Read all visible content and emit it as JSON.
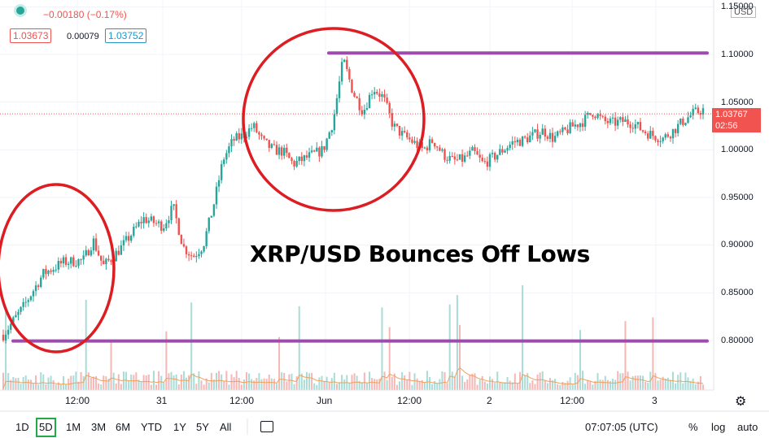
{
  "header": {
    "change_text": "−0.00180 (−0.17%)",
    "bid": "1.03673",
    "spread": "0.00079",
    "ask": "1.03752",
    "currency": "USD"
  },
  "last_price_tag": {
    "price": "1.03767",
    "countdown": "02:56"
  },
  "annotation": "XRP/USD Bounces Off Lows",
  "timeframes": [
    {
      "label": "1D",
      "active": false
    },
    {
      "label": "5D",
      "active": true
    },
    {
      "label": "1M",
      "active": false
    },
    {
      "label": "3M",
      "active": false
    },
    {
      "label": "6M",
      "active": false
    },
    {
      "label": "YTD",
      "active": false
    },
    {
      "label": "1Y",
      "active": false
    },
    {
      "label": "5Y",
      "active": false
    },
    {
      "label": "All",
      "active": false
    }
  ],
  "footer": {
    "time": "07:07:05 (UTC)",
    "percent": "%",
    "log": "log",
    "auto": "auto"
  },
  "colors": {
    "up": "#26a69a",
    "down": "#ef5350",
    "level": "#9c4dab",
    "circle": "#dd1d22",
    "volume_ma": "#f0a05a"
  },
  "chart_data": {
    "type": "candlestick",
    "y_axis": {
      "ticks": [
        "1.15000",
        "1.10000",
        "1.05000",
        "1.00000",
        "0.95000",
        "0.90000",
        "0.85000",
        "0.80000"
      ],
      "ylim": [
        0.76,
        1.15
      ]
    },
    "x_axis": {
      "ticks": [
        "12:00",
        "31",
        "12:00",
        "Jun",
        "12:00",
        "2",
        "12:00",
        "3"
      ]
    },
    "last_price": 1.03767,
    "horizontal_levels": [
      {
        "y": 1.1015
      },
      {
        "y": 0.7995
      }
    ],
    "price_path": [
      [
        0,
        0.806
      ],
      [
        2,
        0.835
      ],
      [
        4,
        0.87
      ],
      [
        6,
        0.882
      ],
      [
        8,
        0.884
      ],
      [
        9,
        0.905
      ],
      [
        10,
        0.878
      ],
      [
        11,
        0.888
      ],
      [
        12,
        0.9
      ],
      [
        14,
        0.928
      ],
      [
        16,
        0.92
      ],
      [
        17,
        0.94
      ],
      [
        18,
        0.898
      ],
      [
        19,
        0.888
      ],
      [
        20,
        0.9
      ],
      [
        21,
        0.94
      ],
      [
        22,
        0.99
      ],
      [
        23,
        1.01
      ],
      [
        24,
        1.015
      ],
      [
        25,
        1.025
      ],
      [
        26,
        1.008
      ],
      [
        27,
        1.0
      ],
      [
        28,
        0.998
      ],
      [
        29,
        0.985
      ],
      [
        30,
        0.99
      ],
      [
        31,
        0.995
      ],
      [
        32,
        1.0
      ],
      [
        33,
        1.03
      ],
      [
        34,
        1.095
      ],
      [
        35,
        1.06
      ],
      [
        36,
        1.04
      ],
      [
        37,
        1.065
      ],
      [
        38,
        1.055
      ],
      [
        39,
        1.025
      ],
      [
        40,
        1.015
      ],
      [
        41,
        1.008
      ],
      [
        42,
        1.0
      ],
      [
        43,
        1.01
      ],
      [
        44,
        0.995
      ],
      [
        45,
        0.988
      ],
      [
        46,
        0.99
      ],
      [
        47,
        0.998
      ],
      [
        48,
        0.985
      ],
      [
        49,
        0.992
      ],
      [
        50,
        1.0
      ],
      [
        51,
        1.008
      ],
      [
        52,
        1.01
      ],
      [
        53,
        1.015
      ],
      [
        54,
        1.02
      ],
      [
        55,
        1.012
      ],
      [
        56,
        1.018
      ],
      [
        57,
        1.025
      ],
      [
        58,
        1.03
      ],
      [
        59,
        1.04
      ],
      [
        60,
        1.03
      ],
      [
        61,
        1.028
      ],
      [
        62,
        1.03
      ],
      [
        63,
        1.028
      ],
      [
        64,
        1.02
      ],
      [
        65,
        1.015
      ],
      [
        66,
        1.012
      ],
      [
        67,
        1.02
      ],
      [
        68,
        1.03
      ],
      [
        69,
        1.038
      ],
      [
        70,
        1.042
      ]
    ]
  }
}
